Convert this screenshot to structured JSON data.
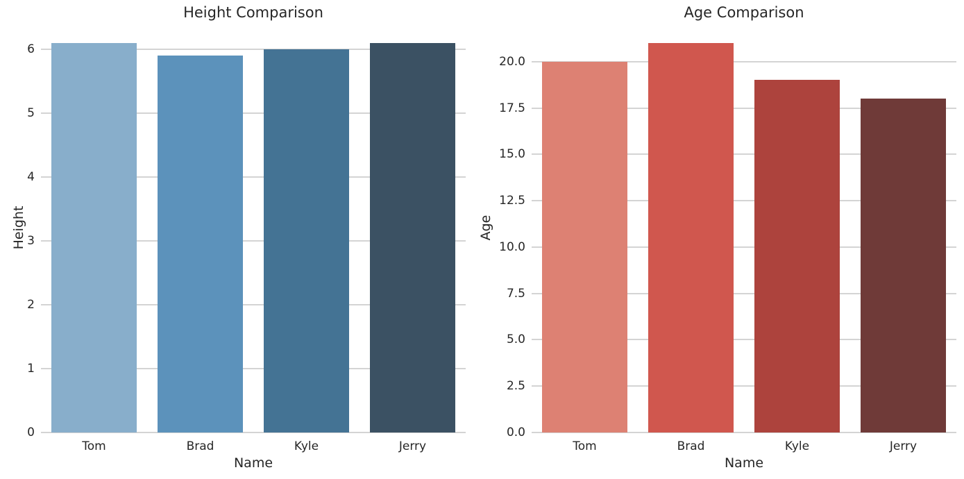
{
  "figure": {
    "background_color": "#ffffff",
    "text_color": "#262626",
    "grid_color": "#d4d4d4"
  },
  "chart_data": [
    {
      "type": "bar",
      "title": "Height Comparison",
      "xlabel": "Name",
      "ylabel": "Height",
      "categories": [
        "Tom",
        "Brad",
        "Kyle",
        "Jerry"
      ],
      "values": [
        6.1,
        5.9,
        6.0,
        6.1
      ],
      "bar_colors": [
        "#88aecb",
        "#5c92bb",
        "#447394",
        "#3b5163"
      ],
      "ylim": [
        0,
        6.4
      ],
      "yticks": [
        {
          "value": 0,
          "label": "0"
        },
        {
          "value": 1,
          "label": "1"
        },
        {
          "value": 2,
          "label": "2"
        },
        {
          "value": 3,
          "label": "3"
        },
        {
          "value": 4,
          "label": "4"
        },
        {
          "value": 5,
          "label": "5"
        },
        {
          "value": 6,
          "label": "6"
        }
      ],
      "grid": "horizontal",
      "legend": "none"
    },
    {
      "type": "bar",
      "title": "Age Comparison",
      "xlabel": "Name",
      "ylabel": "Age",
      "categories": [
        "Tom",
        "Brad",
        "Kyle",
        "Jerry"
      ],
      "values": [
        20,
        21,
        19,
        18
      ],
      "bar_colors": [
        "#dd8173",
        "#d0574e",
        "#ad433d",
        "#6f3a38"
      ],
      "ylim": [
        0,
        22.05
      ],
      "yticks": [
        {
          "value": 0,
          "label": "0.0"
        },
        {
          "value": 2.5,
          "label": "2.5"
        },
        {
          "value": 5,
          "label": "5.0"
        },
        {
          "value": 7.5,
          "label": "7.5"
        },
        {
          "value": 10,
          "label": "10.0"
        },
        {
          "value": 12.5,
          "label": "12.5"
        },
        {
          "value": 15,
          "label": "15.0"
        },
        {
          "value": 17.5,
          "label": "17.5"
        },
        {
          "value": 20,
          "label": "20.0"
        }
      ],
      "grid": "horizontal",
      "legend": "none"
    }
  ]
}
